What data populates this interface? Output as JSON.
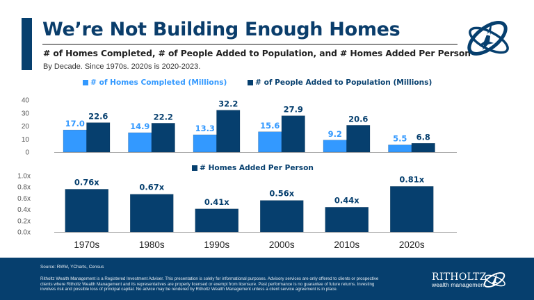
{
  "header": {
    "title": "We’re Not Building Enough Homes",
    "subtitle": "# of Homes Completed, # of People Added to Population, and # Homes Added Per Person",
    "note": "By Decade. Since 1970s. 2020s is 2020-2023.",
    "logo_icon": "ritholtz-orbit-emblem-icon"
  },
  "colors": {
    "navy": "#063F6E",
    "light_blue": "#3399FF",
    "title_navy": "#0A3D6B",
    "axis_gray": "#A6A6A6"
  },
  "chart_data": [
    {
      "type": "bar",
      "title": "",
      "categories": [
        "1970s",
        "1980s",
        "1990s",
        "2000s",
        "2010s",
        "2020s"
      ],
      "series": [
        {
          "name": "# of Homes Completed (Millions)",
          "values": [
            17.0,
            14.9,
            13.3,
            15.6,
            9.2,
            5.5
          ],
          "labels": [
            "17.0",
            "14.9",
            "13.3",
            "15.6",
            "9.2",
            "5.5"
          ]
        },
        {
          "name": "# of People Added to Population (Millions)",
          "values": [
            22.6,
            22.2,
            32.2,
            27.9,
            20.6,
            6.8
          ],
          "labels": [
            "22.6",
            "22.2",
            "32.2",
            "27.9",
            "20.6",
            "6.8"
          ]
        }
      ],
      "yticks": [
        "0",
        "10",
        "20",
        "30",
        "40"
      ],
      "ylim": [
        0,
        40
      ],
      "xlabel": "",
      "ylabel": "",
      "grid": false,
      "legend_position": "top-center"
    },
    {
      "type": "bar",
      "title": "",
      "categories": [
        "1970s",
        "1980s",
        "1990s",
        "2000s",
        "2010s",
        "2020s"
      ],
      "series": [
        {
          "name": "# Homes Added Per Person",
          "values": [
            0.76,
            0.67,
            0.41,
            0.56,
            0.44,
            0.81
          ],
          "labels": [
            "0.76x",
            "0.67x",
            "0.41x",
            "0.56x",
            "0.44x",
            "0.81x"
          ]
        }
      ],
      "yticks": [
        "0.0x",
        "0.2x",
        "0.4x",
        "0.6x",
        "0.8x",
        "1.0x"
      ],
      "ylim": [
        0,
        1.0
      ],
      "xlabel": "",
      "ylabel": "",
      "grid": false,
      "legend_position": "top-center"
    }
  ],
  "footer": {
    "source": "Source: RWM, YCharts, Census",
    "disclaimer": "Ritholtz Wealth Management is a Registered Investment Adviser. This presentation is solely for informational purposes. Advisory services are only offered to clients or prospective clients where Ritholtz Wealth Management and its representatives are properly licensed or exempt from licensure. Past performance is no guarantee of future returns. Investing involves risk and possible loss of principal capital. No advice may be rendered by Ritholtz Wealth Management unless a client service agreement is in place.",
    "brand_name": "RITHOLTZ",
    "brand_sub": "wealth management"
  }
}
